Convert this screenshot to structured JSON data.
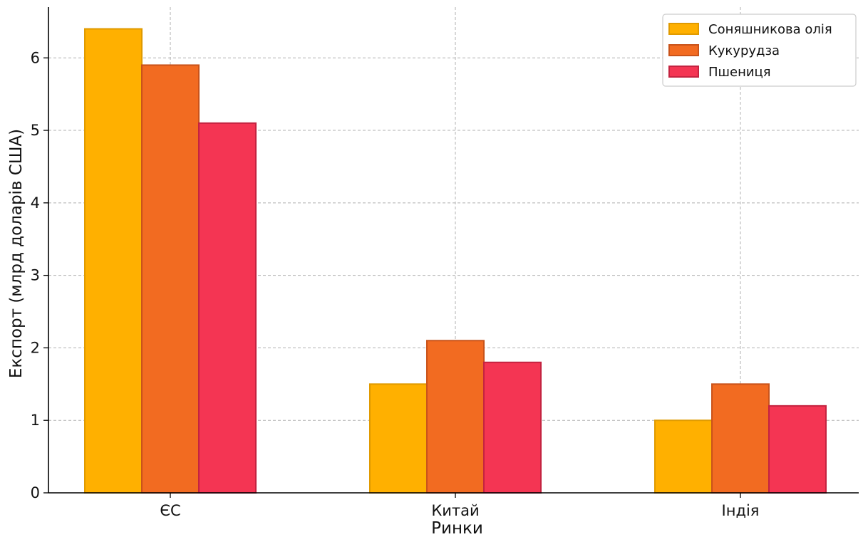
{
  "chart_data": {
    "type": "bar",
    "title": "",
    "xlabel": "Ринки",
    "ylabel": "Експорт (млрд доларів США)",
    "categories": [
      "ЄС",
      "Китай",
      "Індія"
    ],
    "series": [
      {
        "name": "Соняшникова олія",
        "color": "#FFB000",
        "edge": "#E09A00",
        "values": [
          6.4,
          1.5,
          1.0
        ]
      },
      {
        "name": "Кукурудза",
        "color": "#F26B21",
        "edge": "#C9531A",
        "values": [
          5.9,
          2.1,
          1.5
        ]
      },
      {
        "name": "Пшениця",
        "color": "#F43553",
        "edge": "#C42340",
        "values": [
          5.1,
          1.8,
          1.2
        ]
      }
    ],
    "ylim": [
      0,
      6.7
    ],
    "yticks": [
      0,
      1,
      2,
      3,
      4,
      5,
      6
    ],
    "grid": true,
    "legend": "top-right"
  }
}
